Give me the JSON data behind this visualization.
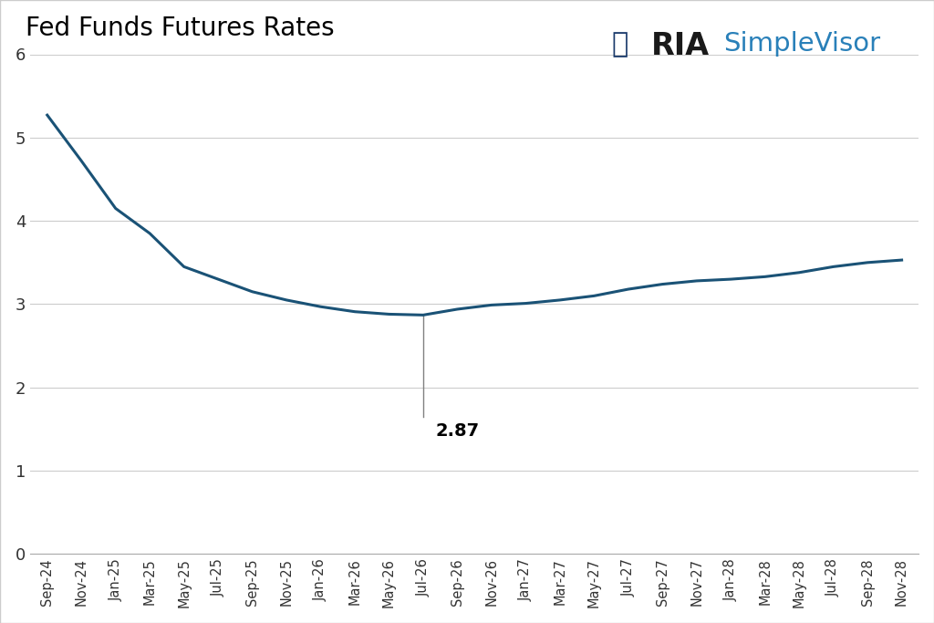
{
  "title": "Fed Funds Futures Rates",
  "title_fontsize": 20,
  "line_color": "#1a5276",
  "line_width": 2.2,
  "background_color": "#ffffff",
  "grid_color": "#cccccc",
  "ylim": [
    0,
    6
  ],
  "yticks": [
    0,
    1,
    2,
    3,
    4,
    5,
    6
  ],
  "annotation_value": "2.87",
  "annotation_fontsize": 14,
  "x_labels": [
    "Sep-24",
    "Nov-24",
    "Jan-25",
    "Mar-25",
    "May-25",
    "Jul-25",
    "Sep-25",
    "Nov-25",
    "Jan-26",
    "Mar-26",
    "May-26",
    "Jul-26",
    "Sep-26",
    "Nov-26",
    "Jan-27",
    "Mar-27",
    "May-27",
    "Jul-27",
    "Sep-27",
    "Nov-27",
    "Jan-28",
    "Mar-28",
    "May-28",
    "Jul-28",
    "Sep-28",
    "Nov-28"
  ],
  "y_values": [
    5.27,
    4.72,
    4.15,
    3.85,
    3.45,
    3.3,
    3.15,
    3.05,
    2.97,
    2.91,
    2.88,
    2.87,
    2.94,
    2.99,
    3.01,
    3.05,
    3.1,
    3.18,
    3.24,
    3.28,
    3.3,
    3.33,
    3.38,
    3.45,
    3.5,
    3.53
  ],
  "min_idx": 11,
  "ria_text": "RIA",
  "sv_text": "SimpleVisor",
  "ria_color": "#1a1a1a",
  "sv_color": "#2980b9",
  "logo_color": "#1a3a6b"
}
